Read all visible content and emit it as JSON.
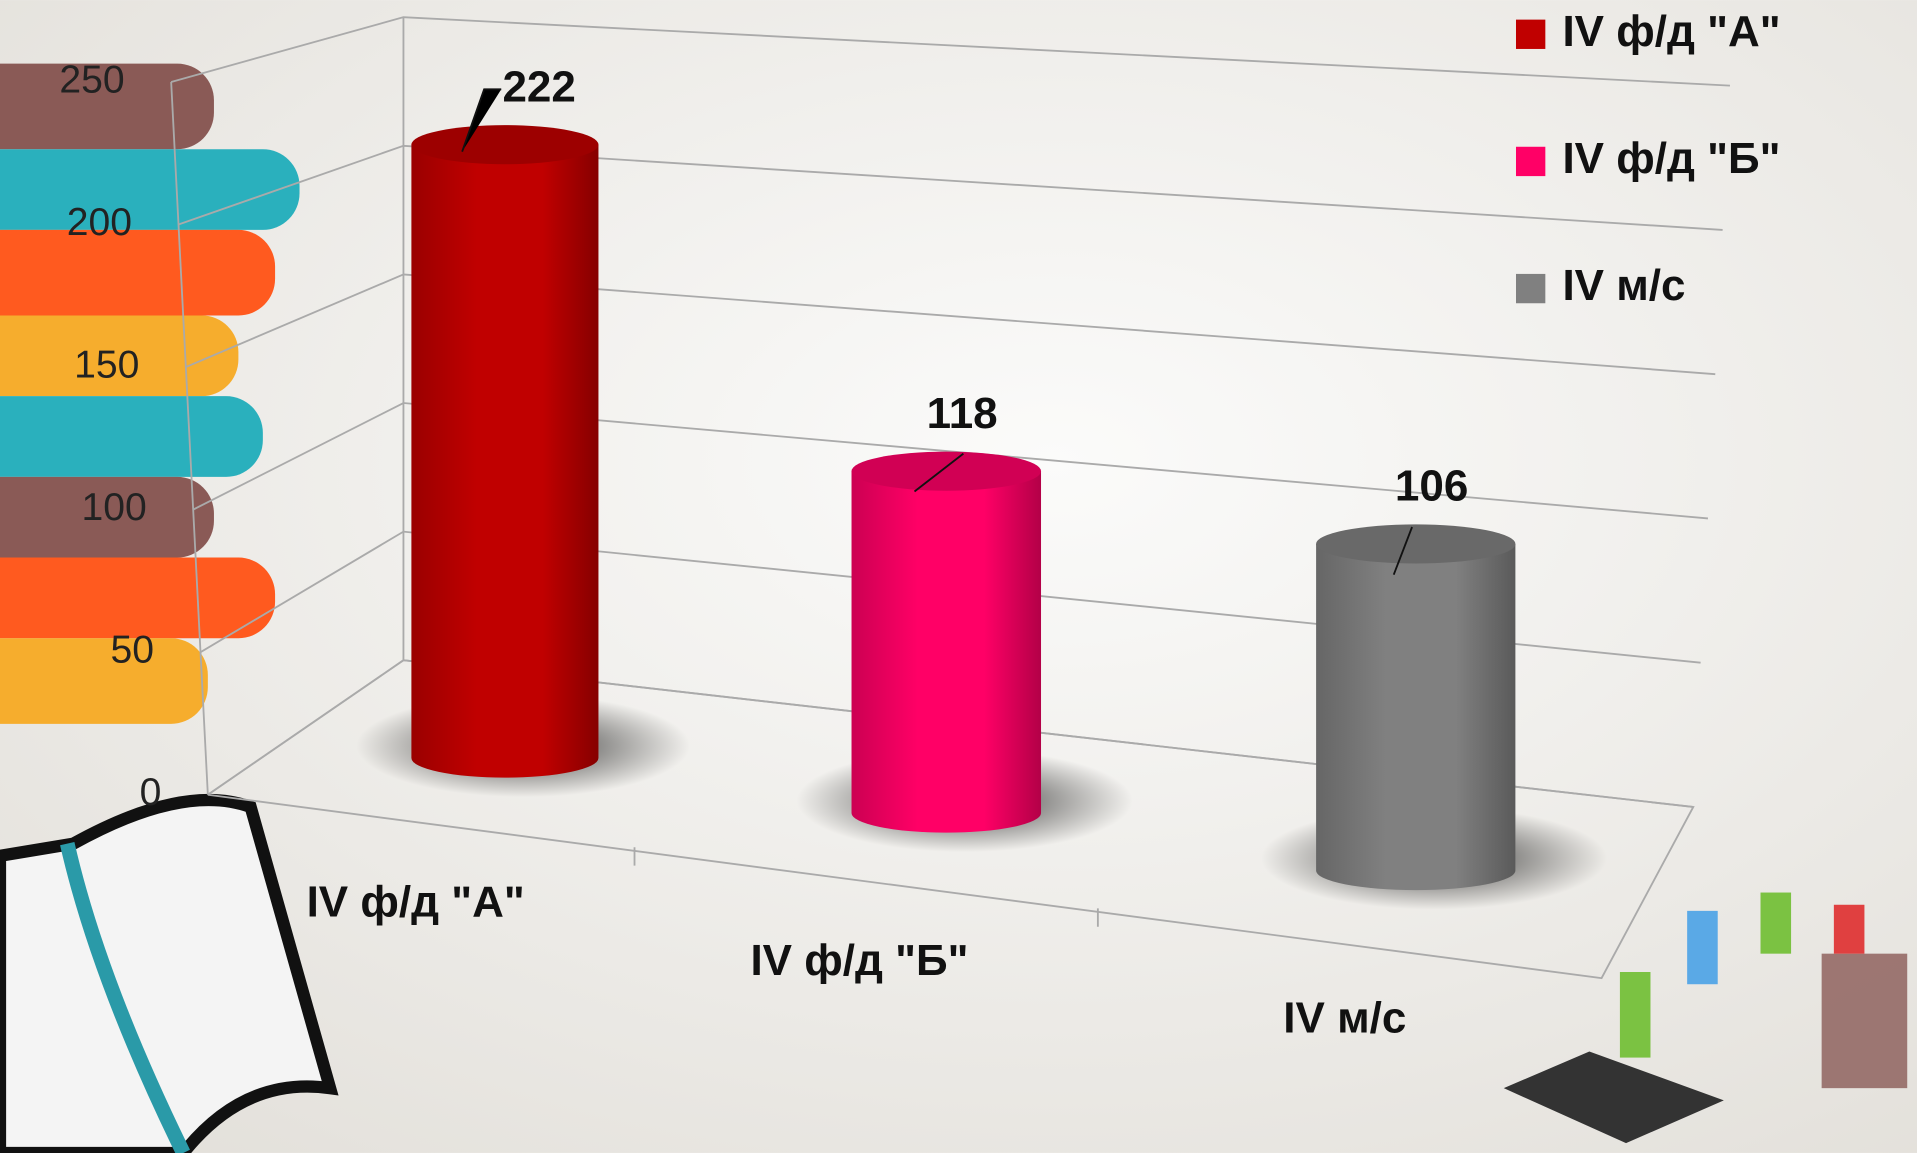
{
  "chart_data": {
    "type": "bar",
    "categories": [
      "IV ф/д \"А\"",
      "IV ф/д \"Б\"",
      "IV м/с"
    ],
    "values": [
      222,
      118,
      106
    ],
    "colors": [
      "#c00000",
      "#ff0066",
      "#808080"
    ],
    "ylim": [
      0,
      250
    ],
    "yticks": [
      0,
      50,
      100,
      150,
      200,
      250
    ],
    "grid": true,
    "legend": "top-right"
  }
}
